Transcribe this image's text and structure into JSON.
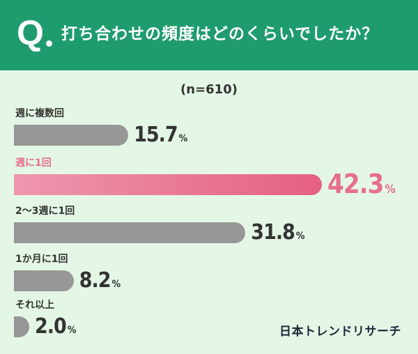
{
  "header": {
    "q_mark": "Q",
    "question": "打ち合わせの頻度はどのくらいでしたか？"
  },
  "sample": "(n=610)",
  "colors": {
    "header_bg": "#1f9c6d",
    "background": "#e4f7e6",
    "bar_gray": "#979797",
    "highlight": "#e76e8e"
  },
  "chart_data": {
    "type": "bar",
    "orientation": "horizontal",
    "categories": [
      "週に複数回",
      "週に1回",
      "2～3週に1回",
      "1か月に1回",
      "それ以上"
    ],
    "values": [
      15.7,
      42.3,
      31.8,
      8.2,
      2.0
    ],
    "value_suffix": "%",
    "highlight_index": 1,
    "title": "打ち合わせの頻度はどのくらいでしたか？",
    "xlabel": "",
    "ylabel": ""
  },
  "footer": {
    "logo": "日本トレンドリサーチ"
  }
}
